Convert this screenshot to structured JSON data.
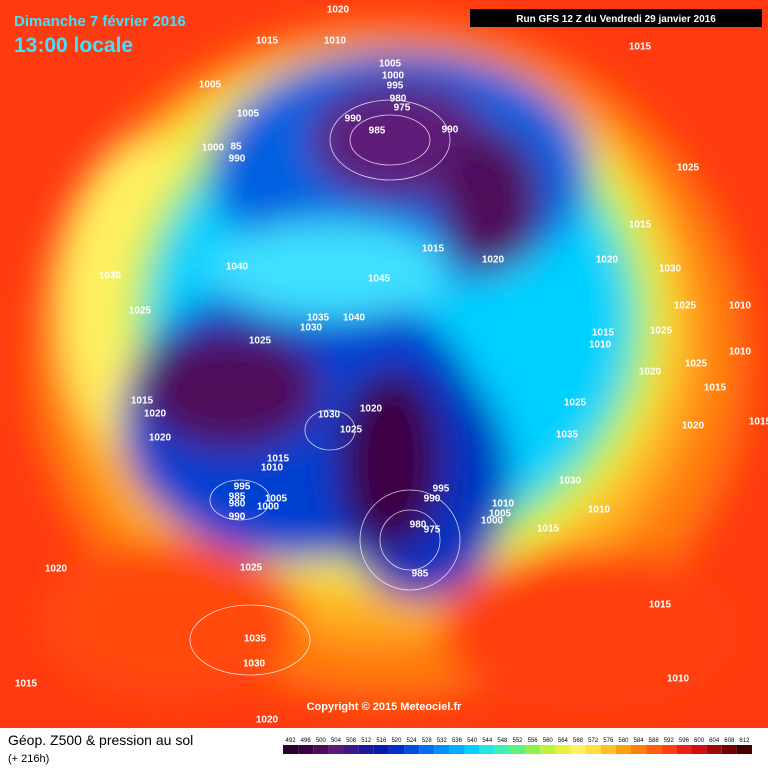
{
  "header": {
    "date": "Dimanche 7 février 2016",
    "time": "13:00 locale",
    "run": "Run GFS 12 Z du Vendredi 29 janvier 2016"
  },
  "copyright": "Copyright © 2015 Meteociel.fr",
  "footer": {
    "title": "Géop. Z500 & pression au sol",
    "lead": "(+ 216h)"
  },
  "legend": {
    "values": [
      492,
      496,
      500,
      504,
      508,
      512,
      516,
      520,
      524,
      528,
      532,
      536,
      540,
      544,
      548,
      552,
      556,
      560,
      564,
      568,
      572,
      576,
      580,
      584,
      588,
      592,
      596,
      600,
      604,
      608,
      612
    ],
    "colors": [
      "#2a002a",
      "#3c0042",
      "#4f0a5a",
      "#5e1a78",
      "#3a1a8a",
      "#1a1a9a",
      "#0a1aaa",
      "#0030c8",
      "#0050e0",
      "#0070f0",
      "#0090f8",
      "#00b0ff",
      "#00d0ff",
      "#20e8e0",
      "#40f0b0",
      "#60f080",
      "#90f050",
      "#c0f040",
      "#e8f040",
      "#fff060",
      "#ffe040",
      "#ffc020",
      "#ffa010",
      "#ff8010",
      "#ff6010",
      "#ff4010",
      "#f02010",
      "#d01010",
      "#a00808",
      "#700000",
      "#400000"
    ]
  },
  "isobars": [
    1020,
    1015,
    1010,
    1015,
    1005,
    1005,
    1000,
    995,
    980,
    975,
    990,
    985,
    990,
    1005,
    1000,
    85,
    990,
    1025,
    1015,
    1015,
    1020,
    1020,
    1030,
    1040,
    1045,
    1030,
    1025,
    1035,
    1030,
    1040,
    1025,
    1015,
    1010,
    1025,
    1025,
    1010,
    1010,
    1020,
    1025,
    1015,
    1015,
    1020,
    1030,
    1020,
    1025,
    1025,
    1015,
    1020,
    1020,
    1035,
    1015,
    1010,
    1030,
    995,
    985,
    980,
    1005,
    1000,
    990,
    995,
    990,
    1010,
    1005,
    1000,
    1010,
    1015,
    980,
    975,
    985,
    1020,
    1025,
    1035,
    1030,
    1015,
    1015,
    1010,
    1020
  ]
}
